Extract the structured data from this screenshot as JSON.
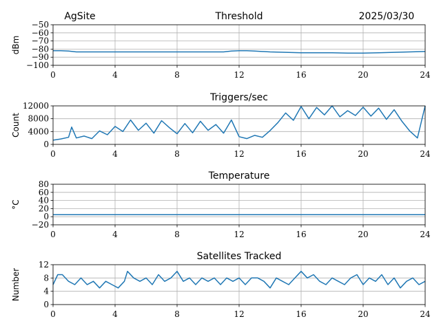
{
  "header": {
    "site": "AgSite",
    "date": "2025/03/30"
  },
  "colors": {
    "series": "#1f77b4",
    "grid": "#b0b0b0"
  },
  "chart_data": [
    {
      "type": "line",
      "title": "Threshold",
      "xlabel": "",
      "ylabel": "dBm",
      "xlim": [
        0,
        24
      ],
      "ylim": [
        -100,
        -50
      ],
      "xticks": [
        0,
        4,
        8,
        12,
        16,
        20,
        24
      ],
      "yticks": [
        -50,
        -60,
        -70,
        -80,
        -90,
        -100
      ],
      "ytick_labels": [
        "−50",
        "−60",
        "−70",
        "−80",
        "−90",
        "−100"
      ],
      "grid": true,
      "x": [
        0,
        0.5,
        1,
        1.5,
        2,
        3,
        4,
        5,
        6,
        7,
        8,
        9,
        10,
        11,
        11.5,
        12,
        12.5,
        13,
        14,
        15,
        16,
        17,
        18,
        19,
        20,
        21,
        22,
        23,
        24
      ],
      "y": [
        -82,
        -82,
        -82.5,
        -83.5,
        -83.5,
        -83.5,
        -83.5,
        -83.5,
        -83.5,
        -83.5,
        -83.5,
        -83.5,
        -83.5,
        -83.5,
        -82.5,
        -82,
        -82,
        -82.5,
        -83.5,
        -84,
        -84.5,
        -84.5,
        -84.5,
        -85,
        -85,
        -84.5,
        -84,
        -83.5,
        -83
      ]
    },
    {
      "type": "line",
      "title": "Triggers/sec",
      "xlabel": "",
      "ylabel": "Count",
      "xlim": [
        0,
        24
      ],
      "ylim": [
        0,
        12000
      ],
      "xticks": [
        0,
        4,
        8,
        12,
        16,
        20,
        24
      ],
      "yticks": [
        0,
        4000,
        8000,
        12000
      ],
      "ytick_labels": [
        "0",
        "4000",
        "8000",
        "12000"
      ],
      "grid": true,
      "x": [
        0,
        0.5,
        1,
        1.2,
        1.5,
        2,
        2.5,
        3,
        3.5,
        4,
        4.5,
        5,
        5.5,
        6,
        6.5,
        7,
        7.5,
        8,
        8.5,
        9,
        9.5,
        10,
        10.5,
        11,
        11.5,
        12,
        12.5,
        13,
        13.5,
        14,
        14.5,
        15,
        15.5,
        16,
        16.5,
        17,
        17.5,
        18,
        18.5,
        19,
        19.5,
        20,
        20.5,
        21,
        21.5,
        22,
        22.5,
        23,
        23.5,
        24
      ],
      "y": [
        1300,
        1700,
        2200,
        5400,
        2000,
        2600,
        1800,
        4200,
        3000,
        5600,
        4000,
        7600,
        4400,
        6600,
        3500,
        7400,
        5200,
        3300,
        6500,
        3600,
        7200,
        4400,
        6200,
        3500,
        7600,
        2400,
        1800,
        2800,
        2200,
        4300,
        6800,
        9800,
        7500,
        11800,
        8000,
        11500,
        9200,
        12000,
        8600,
        10500,
        9000,
        11600,
        8800,
        11300,
        7800,
        10800,
        7200,
        4200,
        2000,
        12000
      ]
    },
    {
      "type": "line",
      "title": "Temperature",
      "xlabel": "",
      "ylabel": "°C",
      "xlim": [
        0,
        24
      ],
      "ylim": [
        -20,
        80
      ],
      "xticks": [
        0,
        4,
        8,
        12,
        16,
        20,
        24
      ],
      "yticks": [
        -20,
        0,
        20,
        40,
        60,
        80
      ],
      "ytick_labels": [
        "−20",
        "0",
        "20",
        "40",
        "60",
        "80"
      ],
      "grid": true,
      "x": [
        0,
        24
      ],
      "y": [
        5,
        5
      ]
    },
    {
      "type": "line",
      "title": "Satellites Tracked",
      "xlabel": "",
      "ylabel": "Number",
      "xlim": [
        0,
        24
      ],
      "ylim": [
        0,
        12
      ],
      "xticks": [
        0,
        4,
        8,
        12,
        16,
        20,
        24
      ],
      "yticks": [
        0,
        4,
        8,
        12
      ],
      "ytick_labels": [
        "0",
        "4",
        "8",
        "12"
      ],
      "grid": true,
      "x": [
        0,
        0.3,
        0.6,
        1.0,
        1.4,
        1.8,
        2.2,
        2.6,
        3.0,
        3.4,
        3.8,
        4.2,
        4.6,
        4.8,
        5.2,
        5.6,
        6.0,
        6.4,
        6.8,
        7.2,
        7.6,
        8.0,
        8.4,
        8.8,
        9.2,
        9.6,
        10.0,
        10.4,
        10.8,
        11.2,
        11.6,
        12.0,
        12.4,
        12.8,
        13.2,
        13.6,
        14.0,
        14.4,
        14.8,
        15.2,
        15.6,
        16.0,
        16.4,
        16.8,
        17.2,
        17.6,
        18.0,
        18.4,
        18.8,
        19.2,
        19.6,
        20.0,
        20.4,
        20.8,
        21.2,
        21.6,
        22.0,
        22.4,
        22.8,
        23.2,
        23.6,
        24.0
      ],
      "y": [
        6,
        9,
        9,
        7,
        6,
        8,
        6,
        7,
        5,
        7,
        6,
        5,
        7,
        10,
        8,
        7,
        8,
        6,
        9,
        7,
        8,
        10,
        7,
        8,
        6,
        8,
        7,
        8,
        6,
        8,
        7,
        8,
        6,
        8,
        8,
        7,
        5,
        8,
        7,
        6,
        8,
        10,
        8,
        9,
        7,
        6,
        8,
        7,
        6,
        8,
        9,
        6,
        8,
        7,
        9,
        6,
        8,
        5,
        7,
        8,
        6,
        7
      ]
    }
  ]
}
